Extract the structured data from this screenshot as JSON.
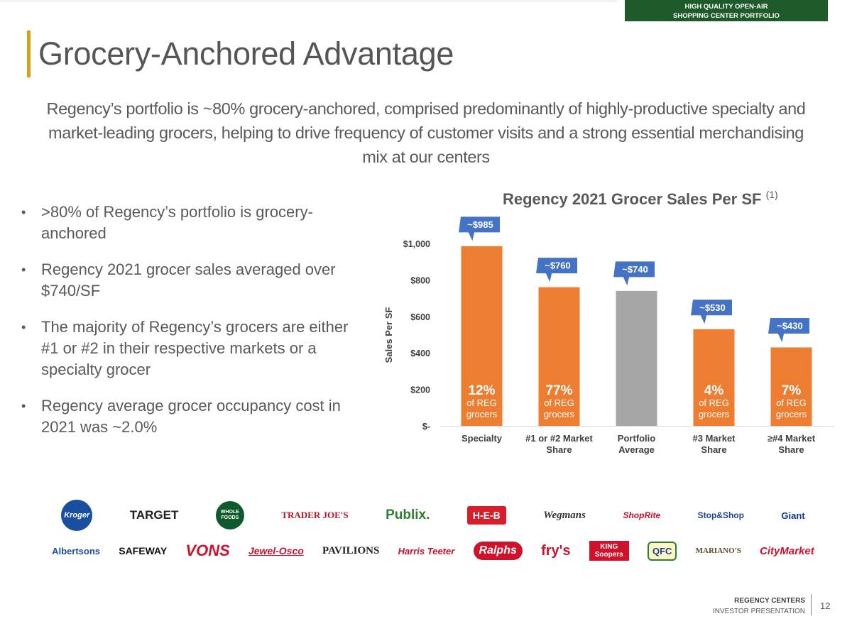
{
  "header": {
    "tag_line1": "HIGH QUALITY OPEN-AIR",
    "tag_line2": "SHOPPING CENTER PORTFOLIO",
    "title": "Grocery-Anchored Advantage",
    "subtitle": "Regency’s portfolio is ~80% grocery-anchored, comprised predominantly of highly-productive specialty and market-leading grocers, helping to drive frequency of customer visits and a strong essential merchandising mix at our centers"
  },
  "bullets": [
    ">80% of Regency’s portfolio is grocery-anchored",
    "Regency 2021 grocer sales averaged over $740/SF",
    "The majority of Regency’s grocers are either #1 or #2 in their respective markets or a specialty grocer",
    "Regency average grocer occupancy cost in 2021 was ~2.0%"
  ],
  "chart_data": {
    "type": "bar",
    "title": "Regency 2021 Grocer Sales Per SF",
    "title_footnote": "(1)",
    "ylabel": "Sales Per SF",
    "ylim": [
      0,
      1000
    ],
    "yticks": [
      0,
      200,
      400,
      600,
      800,
      1000
    ],
    "ytick_labels": [
      "$-",
      "$200",
      "$400",
      "$600",
      "$800",
      "$1,000"
    ],
    "grid": false,
    "categories": [
      [
        "Specialty"
      ],
      [
        "#1 or #2 Market",
        "Share"
      ],
      [
        "Portfolio",
        "Average"
      ],
      [
        "#3 Market",
        "Share"
      ],
      [
        "≥#4 Market",
        "Share"
      ]
    ],
    "values": [
      985,
      760,
      740,
      530,
      430
    ],
    "value_labels": [
      "~$985",
      "~$760",
      "~$740",
      "~$530",
      "~$430"
    ],
    "bar_colors": [
      "#ed7d31",
      "#ed7d31",
      "#a6a6a6",
      "#ed7d31",
      "#ed7d31"
    ],
    "callout_color": "#4472c4",
    "share_labels": [
      {
        "pct": "12%",
        "line1": "of REG",
        "line2": "grocers"
      },
      {
        "pct": "77%",
        "line1": "of REG",
        "line2": "grocers"
      },
      null,
      {
        "pct": "4%",
        "line1": "of REG",
        "line2": "grocers"
      },
      {
        "pct": "7%",
        "line1": "of REG",
        "line2": "grocers"
      }
    ]
  },
  "logos_row1": [
    "Kroger",
    "TARGET",
    "WHOLE FOODS",
    "TRADER JOE'S",
    "Publix.",
    "H-E-B",
    "Wegmans",
    "ShopRite",
    "Stop&Shop",
    "Giant"
  ],
  "logos_row2": [
    "Albertsons",
    "SAFEWAY",
    "VONS",
    "Jewel-Osco",
    "PAVILIONS",
    "Harris Teeter",
    "Ralphs",
    "fry's",
    "KING Soopers",
    "QFC",
    "MARIANO'S",
    "CityMarket"
  ],
  "footer": {
    "company": "REGENCY CENTERS",
    "doc": "INVESTOR PRESENTATION",
    "page": "12"
  },
  "colors": {
    "accent_gold": "#d4a017",
    "tag_green": "#1f5a2b",
    "bar_orange": "#ed7d31",
    "bar_gray": "#a6a6a6",
    "callout_blue": "#4472c4"
  }
}
